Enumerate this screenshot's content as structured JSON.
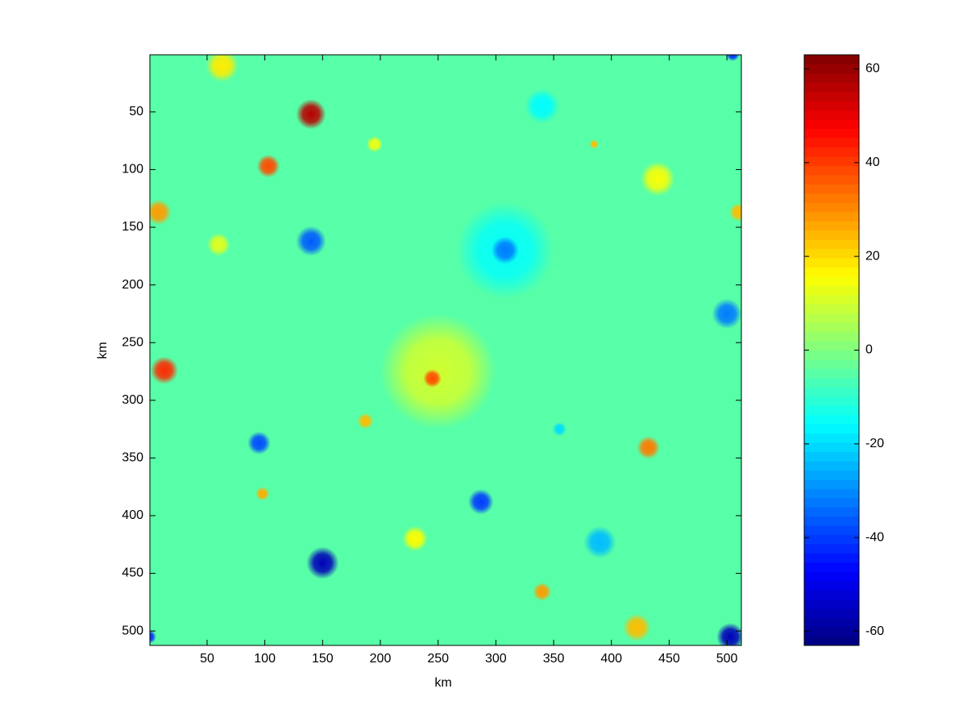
{
  "chart_data": {
    "type": "heatmap",
    "colormap": "jet",
    "xlabel": "km",
    "ylabel": "km",
    "xlim": [
      0.5,
      512.5
    ],
    "ylim": [
      0.5,
      512.5
    ],
    "y_reversed": true,
    "xticks": [
      50,
      100,
      150,
      200,
      250,
      300,
      350,
      400,
      450,
      500
    ],
    "yticks": [
      50,
      100,
      150,
      200,
      250,
      300,
      350,
      400,
      450,
      500
    ],
    "clim": [
      -63,
      63
    ],
    "cticks": [
      -60,
      -40,
      -20,
      0,
      20,
      40,
      60
    ],
    "background_value": -5,
    "x": [
      250,
      308,
      440,
      63,
      60,
      195,
      230,
      340,
      390,
      308,
      140,
      103,
      8,
      140,
      500,
      13,
      245,
      95,
      187,
      432,
      98,
      287,
      150,
      340,
      422,
      503,
      510,
      0,
      505,
      355,
      385
    ],
    "y": [
      275,
      170,
      108,
      10,
      165,
      78,
      420,
      45,
      423,
      170,
      52,
      97,
      137,
      162,
      225,
      274,
      281,
      337,
      318,
      341,
      381,
      388,
      441,
      466,
      497,
      505,
      137,
      505,
      0,
      325,
      78
    ],
    "values": [
      10,
      -15,
      15,
      18,
      12,
      14,
      16,
      -16,
      -24,
      -32,
      56,
      38,
      28,
      -36,
      -32,
      42,
      38,
      -38,
      24,
      32,
      26,
      -40,
      -56,
      28,
      24,
      -56,
      24,
      -42,
      -42,
      -20,
      24
    ],
    "sizes": [
      50,
      42,
      15,
      14,
      10,
      7,
      11,
      15,
      14,
      12,
      13,
      10,
      11,
      13,
      13,
      12,
      8,
      10,
      7,
      10,
      6,
      11,
      14,
      8,
      12,
      12,
      8,
      6,
      6,
      6,
      4
    ]
  }
}
